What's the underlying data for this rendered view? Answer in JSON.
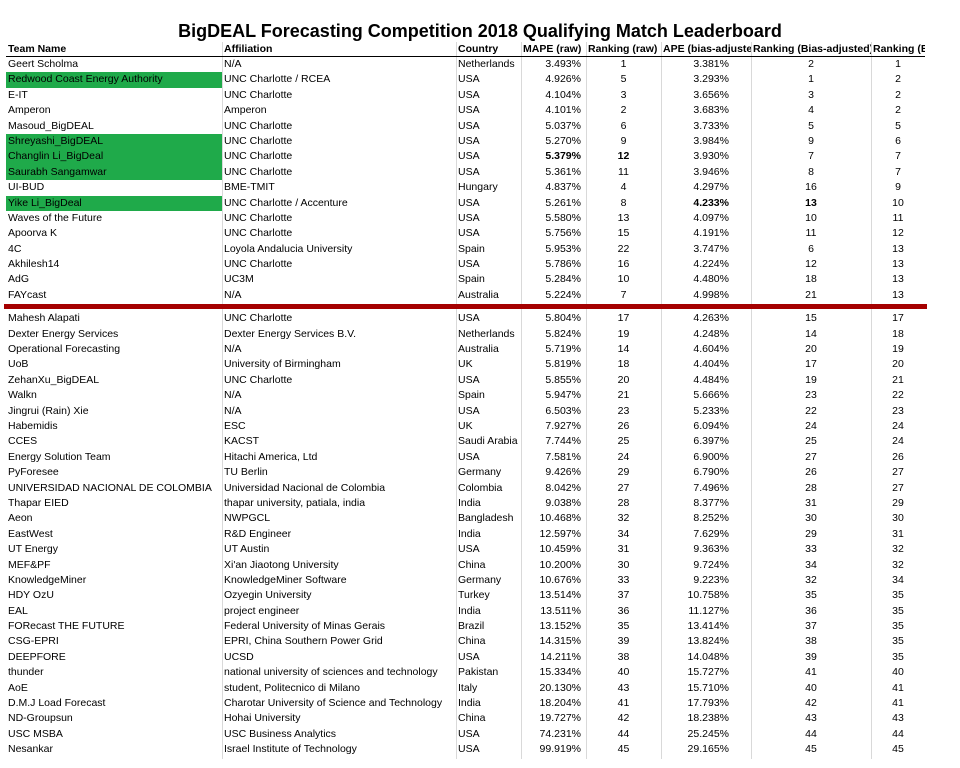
{
  "title": "BigDEAL Forecasting Competition 2018 Qualifying Match Leaderboard",
  "columns": [
    "Team Name",
    "Affiliation",
    "Country",
    "MAPE (raw)",
    "Ranking (raw)",
    "APE (bias-adjusted)",
    "Ranking (Bias-adjusted)",
    "Ranking (BOTH)"
  ],
  "highlight_color": "#1faa4a",
  "divider_color": "#a50000",
  "qualifiers": [
    {
      "team": "Geert Scholma",
      "affiliation": "N/A",
      "country": "Netherlands",
      "mape": "3.493%",
      "rank_raw": "1",
      "ape": "3.381%",
      "rank_bias": "2",
      "rank_both": "1"
    },
    {
      "team": "Redwood Coast Energy Authority",
      "affiliation": "UNC Charlotte / RCEA",
      "country": "USA",
      "mape": "4.926%",
      "rank_raw": "5",
      "ape": "3.293%",
      "rank_bias": "1",
      "rank_both": "2",
      "highlight": true
    },
    {
      "team": "E-IT",
      "affiliation": "UNC Charlotte",
      "country": "USA",
      "mape": "4.104%",
      "rank_raw": "3",
      "ape": "3.656%",
      "rank_bias": "3",
      "rank_both": "2"
    },
    {
      "team": "Amperon",
      "affiliation": "Amperon",
      "country": "USA",
      "mape": "4.101%",
      "rank_raw": "2",
      "ape": "3.683%",
      "rank_bias": "4",
      "rank_both": "2"
    },
    {
      "team": "Masoud_BigDEAL",
      "affiliation": "UNC Charlotte",
      "country": "USA",
      "mape": "5.037%",
      "rank_raw": "6",
      "ape": "3.733%",
      "rank_bias": "5",
      "rank_both": "5"
    },
    {
      "team": "Shreyashi_BigDEAL",
      "affiliation": "UNC Charlotte",
      "country": "USA",
      "mape": "5.270%",
      "rank_raw": "9",
      "ape": "3.984%",
      "rank_bias": "9",
      "rank_both": "6",
      "highlight": true
    },
    {
      "team": "Changlin Li_BigDeal",
      "affiliation": "UNC Charlotte",
      "country": "USA",
      "mape": "5.379%",
      "rank_raw": "12",
      "ape": "3.930%",
      "rank_bias": "7",
      "rank_both": "7",
      "highlight": true,
      "bold_raw": true
    },
    {
      "team": "Saurabh Sangamwar",
      "affiliation": "UNC Charlotte",
      "country": "USA",
      "mape": "5.361%",
      "rank_raw": "11",
      "ape": "3.946%",
      "rank_bias": "8",
      "rank_both": "7",
      "highlight": true
    },
    {
      "team": "UI-BUD",
      "affiliation": "BME-TMIT",
      "country": "Hungary",
      "mape": "4.837%",
      "rank_raw": "4",
      "ape": "4.297%",
      "rank_bias": "16",
      "rank_both": "9"
    },
    {
      "team": "Yike Li_BigDeal",
      "affiliation": "UNC Charlotte / Accenture",
      "country": "USA",
      "mape": "5.261%",
      "rank_raw": "8",
      "ape": "4.233%",
      "rank_bias": "13",
      "rank_both": "10",
      "highlight": true,
      "bold_bias": true
    },
    {
      "team": "Waves of the Future",
      "affiliation": "UNC Charlotte",
      "country": "USA",
      "mape": "5.580%",
      "rank_raw": "13",
      "ape": "4.097%",
      "rank_bias": "10",
      "rank_both": "11"
    },
    {
      "team": "Apoorva K",
      "affiliation": "UNC Charlotte",
      "country": "USA",
      "mape": "5.756%",
      "rank_raw": "15",
      "ape": "4.191%",
      "rank_bias": "11",
      "rank_both": "12"
    },
    {
      "team": "4C",
      "affiliation": "Loyola Andalucia University",
      "country": "Spain",
      "mape": "5.953%",
      "rank_raw": "22",
      "ape": "3.747%",
      "rank_bias": "6",
      "rank_both": "13"
    },
    {
      "team": "Akhilesh14",
      "affiliation": "UNC Charlotte",
      "country": "USA",
      "mape": "5.786%",
      "rank_raw": "16",
      "ape": "4.224%",
      "rank_bias": "12",
      "rank_both": "13"
    },
    {
      "team": "AdG",
      "affiliation": "UC3M",
      "country": "Spain",
      "mape": "5.284%",
      "rank_raw": "10",
      "ape": "4.480%",
      "rank_bias": "18",
      "rank_both": "13"
    },
    {
      "team": "FAYcast",
      "affiliation": "N/A",
      "country": "Australia",
      "mape": "5.224%",
      "rank_raw": "7",
      "ape": "4.998%",
      "rank_bias": "21",
      "rank_both": "13"
    }
  ],
  "others": [
    {
      "team": "Mahesh Alapati",
      "affiliation": "UNC Charlotte",
      "country": "USA",
      "mape": "5.804%",
      "rank_raw": "17",
      "ape": "4.263%",
      "rank_bias": "15",
      "rank_both": "17"
    },
    {
      "team": "Dexter Energy Services",
      "affiliation": "Dexter Energy Services B.V.",
      "country": "Netherlands",
      "mape": "5.824%",
      "rank_raw": "19",
      "ape": "4.248%",
      "rank_bias": "14",
      "rank_both": "18"
    },
    {
      "team": "Operational Forecasting",
      "affiliation": "N/A",
      "country": "Australia",
      "mape": "5.719%",
      "rank_raw": "14",
      "ape": "4.604%",
      "rank_bias": "20",
      "rank_both": "19"
    },
    {
      "team": "UoB",
      "affiliation": "University of Birmingham",
      "country": "UK",
      "mape": "5.819%",
      "rank_raw": "18",
      "ape": "4.404%",
      "rank_bias": "17",
      "rank_both": "20"
    },
    {
      "team": "ZehanXu_BigDEAL",
      "affiliation": "UNC Charlotte",
      "country": "USA",
      "mape": "5.855%",
      "rank_raw": "20",
      "ape": "4.484%",
      "rank_bias": "19",
      "rank_both": "21"
    },
    {
      "team": "Walkn",
      "affiliation": "N/A",
      "country": "Spain",
      "mape": "5.947%",
      "rank_raw": "21",
      "ape": "5.666%",
      "rank_bias": "23",
      "rank_both": "22"
    },
    {
      "team": "Jingrui (Rain) Xie",
      "affiliation": "N/A",
      "country": "USA",
      "mape": "6.503%",
      "rank_raw": "23",
      "ape": "5.233%",
      "rank_bias": "22",
      "rank_both": "23"
    },
    {
      "team": "Habemidis",
      "affiliation": "ESC",
      "country": "UK",
      "mape": "7.927%",
      "rank_raw": "26",
      "ape": "6.094%",
      "rank_bias": "24",
      "rank_both": "24"
    },
    {
      "team": "CCES",
      "affiliation": "KACST",
      "country": "Saudi Arabia",
      "mape": "7.744%",
      "rank_raw": "25",
      "ape": "6.397%",
      "rank_bias": "25",
      "rank_both": "24"
    },
    {
      "team": "Energy Solution Team",
      "affiliation": "Hitachi America, Ltd",
      "country": "USA",
      "mape": "7.581%",
      "rank_raw": "24",
      "ape": "6.900%",
      "rank_bias": "27",
      "rank_both": "26"
    },
    {
      "team": "PyForesee",
      "affiliation": "TU Berlin",
      "country": "Germany",
      "mape": "9.426%",
      "rank_raw": "29",
      "ape": "6.790%",
      "rank_bias": "26",
      "rank_both": "27"
    },
    {
      "team": "UNIVERSIDAD NACIONAL DE COLOMBIA",
      "affiliation": "Universidad Nacional de Colombia",
      "country": "Colombia",
      "mape": "8.042%",
      "rank_raw": "27",
      "ape": "7.496%",
      "rank_bias": "28",
      "rank_both": "27"
    },
    {
      "team": "Thapar EIED",
      "affiliation": "thapar university, patiala, india",
      "country": "India",
      "mape": "9.038%",
      "rank_raw": "28",
      "ape": "8.377%",
      "rank_bias": "31",
      "rank_both": "29"
    },
    {
      "team": "Aeon",
      "affiliation": "NWPGCL",
      "country": "Bangladesh",
      "mape": "10.468%",
      "rank_raw": "32",
      "ape": "8.252%",
      "rank_bias": "30",
      "rank_both": "30"
    },
    {
      "team": "EastWest",
      "affiliation": "R&D Engineer",
      "country": "India",
      "mape": "12.597%",
      "rank_raw": "34",
      "ape": "7.629%",
      "rank_bias": "29",
      "rank_both": "31"
    },
    {
      "team": "UT Energy",
      "affiliation": "UT Austin",
      "country": "USA",
      "mape": "10.459%",
      "rank_raw": "31",
      "ape": "9.363%",
      "rank_bias": "33",
      "rank_both": "32"
    },
    {
      "team": "MEF&PF",
      "affiliation": "Xi'an Jiaotong University",
      "country": "China",
      "mape": "10.200%",
      "rank_raw": "30",
      "ape": "9.724%",
      "rank_bias": "34",
      "rank_both": "32"
    },
    {
      "team": "KnowledgeMiner",
      "affiliation": "KnowledgeMiner Software",
      "country": "Germany",
      "mape": "10.676%",
      "rank_raw": "33",
      "ape": "9.223%",
      "rank_bias": "32",
      "rank_both": "34"
    },
    {
      "team": "HDY OzU",
      "affiliation": "Ozyegin University",
      "country": "Turkey",
      "mape": "13.514%",
      "rank_raw": "37",
      "ape": "10.758%",
      "rank_bias": "35",
      "rank_both": "35"
    },
    {
      "team": "EAL",
      "affiliation": "project engineer",
      "country": "India",
      "mape": "13.511%",
      "rank_raw": "36",
      "ape": "11.127%",
      "rank_bias": "36",
      "rank_both": "35"
    },
    {
      "team": "FORecast THE FUTURE",
      "affiliation": "Federal University of Minas Gerais",
      "country": "Brazil",
      "mape": "13.152%",
      "rank_raw": "35",
      "ape": "13.414%",
      "rank_bias": "37",
      "rank_both": "35"
    },
    {
      "team": "CSG-EPRI",
      "affiliation": "EPRI, China Southern Power Grid",
      "country": "China",
      "mape": "14.315%",
      "rank_raw": "39",
      "ape": "13.824%",
      "rank_bias": "38",
      "rank_both": "35"
    },
    {
      "team": "DEEPFORE",
      "affiliation": "UCSD",
      "country": "USA",
      "mape": "14.211%",
      "rank_raw": "38",
      "ape": "14.048%",
      "rank_bias": "39",
      "rank_both": "35"
    },
    {
      "team": "thunder",
      "affiliation": "national university of sciences and technology",
      "country": "Pakistan",
      "mape": "15.334%",
      "rank_raw": "40",
      "ape": "15.727%",
      "rank_bias": "41",
      "rank_both": "40"
    },
    {
      "team": "AoE",
      "affiliation": "student, Politecnico di Milano",
      "country": "Italy",
      "mape": "20.130%",
      "rank_raw": "43",
      "ape": "15.710%",
      "rank_bias": "40",
      "rank_both": "41"
    },
    {
      "team": "D.M.J Load Forecast",
      "affiliation": "Charotar University of Science and Technology",
      "country": "India",
      "mape": "18.204%",
      "rank_raw": "41",
      "ape": "17.793%",
      "rank_bias": "42",
      "rank_both": "41"
    },
    {
      "team": "ND-Groupsun",
      "affiliation": "Hohai University",
      "country": "China",
      "mape": "19.727%",
      "rank_raw": "42",
      "ape": "18.238%",
      "rank_bias": "43",
      "rank_both": "43"
    },
    {
      "team": "USC MSBA",
      "affiliation": "USC Business Analytics",
      "country": "USA",
      "mape": "74.231%",
      "rank_raw": "44",
      "ape": "25.245%",
      "rank_bias": "44",
      "rank_both": "44"
    },
    {
      "team": "Nesankar",
      "affiliation": "Israel Institute of Technology",
      "country": "USA",
      "mape": "99.919%",
      "rank_raw": "45",
      "ape": "29.165%",
      "rank_bias": "45",
      "rank_both": "45"
    }
  ]
}
